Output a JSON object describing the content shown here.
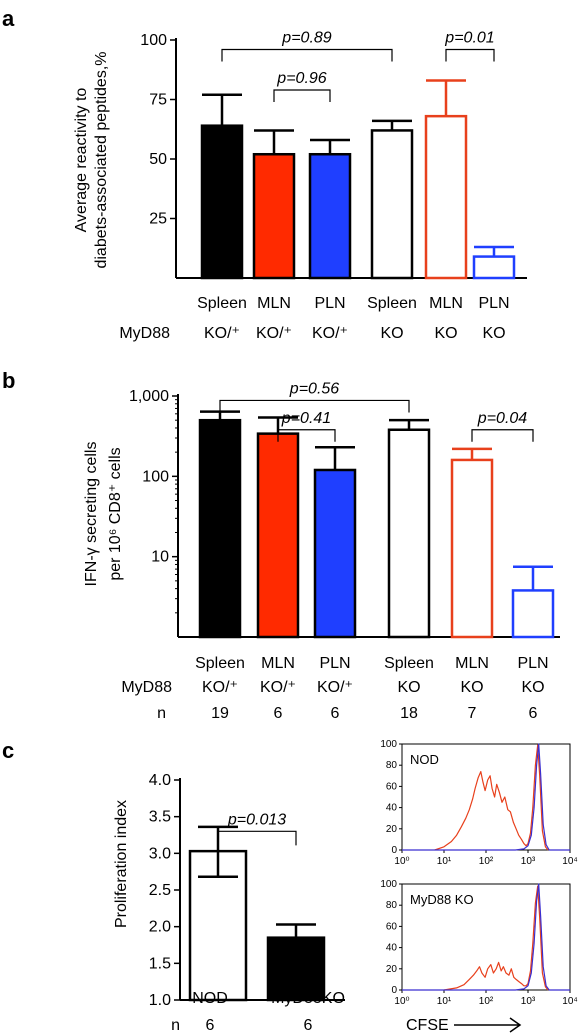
{
  "panels": {
    "a": "a",
    "b": "b",
    "c": "c"
  },
  "chart_data": [
    {
      "id": "a",
      "type": "bar",
      "ylabel_line1": "Average reactivity to",
      "ylabel_line2": "diabets-associated  peptides,%",
      "ylim": [
        0,
        100
      ],
      "yticks": [
        "25",
        "50",
        "75",
        "100"
      ],
      "ytick_values": [
        25,
        50,
        75,
        100
      ],
      "categories": [
        "Spleen",
        "MLN",
        "PLN",
        "Spleen",
        "MLN",
        "PLN"
      ],
      "genotype_row_label": "MyD88",
      "genotypes": [
        "KO/⁺",
        "KO/⁺",
        "KO/⁺",
        "KO",
        "KO",
        "KO"
      ],
      "values": [
        64,
        52,
        52,
        62,
        68,
        9
      ],
      "errors": [
        13,
        10,
        6,
        4,
        15,
        4
      ],
      "fills": [
        "#000000",
        "#ff2a00",
        "#1f3fff",
        "#ffffff",
        "#ffffff",
        "#ffffff"
      ],
      "strokes": [
        "#000000",
        "#000000",
        "#000000",
        "#000000",
        "#e8401c",
        "#1f3fff"
      ],
      "comparisons": [
        {
          "from": 0,
          "to": 3,
          "label": "p=0.89",
          "y": 96
        },
        {
          "from": 1,
          "to": 2,
          "label": "p=0.96",
          "y": 79
        },
        {
          "from": 4,
          "to": 5,
          "label": "p=0.01",
          "y": 96
        }
      ]
    },
    {
      "id": "b",
      "type": "bar",
      "ylabel_line1": "IFN-γ secreting cells",
      "ylabel_line2": "per 10⁶ CD8⁺ cells",
      "scale": "log",
      "ylim": [
        1,
        1000
      ],
      "yticks": [
        "10",
        "100",
        "1,000"
      ],
      "ytick_values": [
        10,
        100,
        1000
      ],
      "categories": [
        "Spleen",
        "MLN",
        "PLN",
        "Spleen",
        "MLN",
        "PLN"
      ],
      "genotype_row_label": "MyD88",
      "genotypes": [
        "KO/⁺",
        "KO/⁺",
        "KO/⁺",
        "KO",
        "KO",
        "KO"
      ],
      "n_row_label": "n",
      "n": [
        "19",
        "6",
        "6",
        "18",
        "7",
        "6"
      ],
      "values": [
        500,
        340,
        120,
        380,
        160,
        3.8
      ],
      "error_tops": [
        640,
        540,
        230,
        500,
        220,
        7.5
      ],
      "fills": [
        "#000000",
        "#ff2a00",
        "#1f3fff",
        "#ffffff",
        "#ffffff",
        "#ffffff"
      ],
      "strokes": [
        "#000000",
        "#000000",
        "#000000",
        "#000000",
        "#e8401c",
        "#1f3fff"
      ],
      "comparisons": [
        {
          "from": 0,
          "to": 3,
          "label": "p=0.56",
          "y": 880
        },
        {
          "from": 1,
          "to": 2,
          "label": "p=0.41",
          "y": 380
        },
        {
          "from": 4,
          "to": 5,
          "label": "p=0.04",
          "y": 380
        }
      ]
    },
    {
      "id": "c",
      "type": "bar",
      "ylabel": "Proliferation index",
      "ylim": [
        1.0,
        4.0
      ],
      "yticks": [
        "1.0",
        "1.5",
        "2.0",
        "2.5",
        "3.0",
        "3.5",
        "4.0"
      ],
      "ytick_values": [
        1.0,
        1.5,
        2.0,
        2.5,
        3.0,
        3.5,
        4.0
      ],
      "categories": [
        "NOD",
        "MyD88KO"
      ],
      "n_row_label": "n",
      "n": [
        "6",
        "6"
      ],
      "values": [
        3.03,
        1.85
      ],
      "error_up": [
        0.33,
        0.18
      ],
      "error_down": [
        0.35,
        0.0
      ],
      "fills": [
        "#ffffff",
        "#000000"
      ],
      "strokes": [
        "#000000",
        "#000000"
      ],
      "comparisons": [
        {
          "from": 0,
          "to": 1,
          "label": "p=0.013",
          "y": 3.3
        }
      ]
    },
    {
      "id": "c-hist-nod",
      "type": "line",
      "label": "NOD",
      "xscale": "log",
      "xlim": [
        1,
        10000
      ],
      "ylim": [
        0,
        100
      ],
      "yticks": [
        "0",
        "20",
        "40",
        "60",
        "80",
        "100"
      ],
      "ytick_values": [
        0,
        20,
        40,
        60,
        80,
        100
      ],
      "xticks": [
        "10⁰",
        "10¹",
        "10²",
        "10³",
        "10⁴"
      ],
      "series": [
        {
          "color": "#e8401c",
          "x": [
            6,
            10,
            15,
            20,
            26,
            33,
            40,
            48,
            55,
            65,
            75,
            85,
            95,
            110,
            125,
            140,
            160,
            180,
            210,
            240,
            280,
            330,
            380,
            450,
            520,
            600,
            700,
            800,
            900,
            1000,
            1150,
            1300,
            1500,
            1700,
            1900,
            2200,
            2600,
            3000
          ],
          "y": [
            0,
            3,
            8,
            14,
            22,
            30,
            38,
            48,
            58,
            68,
            74,
            64,
            56,
            66,
            70,
            58,
            50,
            62,
            54,
            45,
            50,
            38,
            36,
            26,
            20,
            14,
            10,
            6,
            4,
            6,
            16,
            40,
            80,
            99,
            70,
            18,
            3,
            0
          ]
        },
        {
          "color": "#3b2fd0",
          "x": [
            1,
            100,
            500,
            800,
            1000,
            1200,
            1400,
            1600,
            1800,
            2000,
            2300,
            2700,
            3200,
            10000
          ],
          "y": [
            0,
            0,
            0,
            1,
            4,
            14,
            40,
            80,
            100,
            72,
            24,
            5,
            0,
            0
          ]
        }
      ]
    },
    {
      "id": "c-hist-myd88",
      "type": "line",
      "label": "MyD88 KO",
      "xscale": "log",
      "xlabel": "CFSE",
      "xlim": [
        1,
        10000
      ],
      "ylim": [
        0,
        100
      ],
      "yticks": [
        "0",
        "20",
        "40",
        "60",
        "80",
        "100"
      ],
      "ytick_values": [
        0,
        20,
        40,
        60,
        80,
        100
      ],
      "xticks": [
        "10⁰",
        "10¹",
        "10²",
        "10³",
        "10⁴"
      ],
      "series": [
        {
          "color": "#e8401c",
          "x": [
            10,
            20,
            30,
            40,
            50,
            60,
            70,
            80,
            95,
            110,
            130,
            150,
            175,
            200,
            230,
            260,
            300,
            350,
            400,
            460,
            520,
            600,
            700,
            800,
            900,
            1000,
            1150,
            1300,
            1500,
            1700,
            1900,
            2200,
            2600,
            3000
          ],
          "y": [
            0,
            2,
            5,
            10,
            14,
            18,
            22,
            16,
            12,
            20,
            24,
            16,
            20,
            26,
            18,
            22,
            16,
            14,
            20,
            12,
            10,
            8,
            6,
            4,
            4,
            6,
            18,
            44,
            82,
            98,
            68,
            16,
            3,
            0
          ]
        },
        {
          "color": "#3b2fd0",
          "x": [
            1,
            100,
            500,
            800,
            1000,
            1200,
            1400,
            1600,
            1800,
            2000,
            2300,
            2700,
            3200,
            10000
          ],
          "y": [
            0,
            0,
            0,
            1,
            4,
            16,
            44,
            84,
            100,
            70,
            22,
            4,
            0,
            0
          ]
        }
      ]
    }
  ]
}
